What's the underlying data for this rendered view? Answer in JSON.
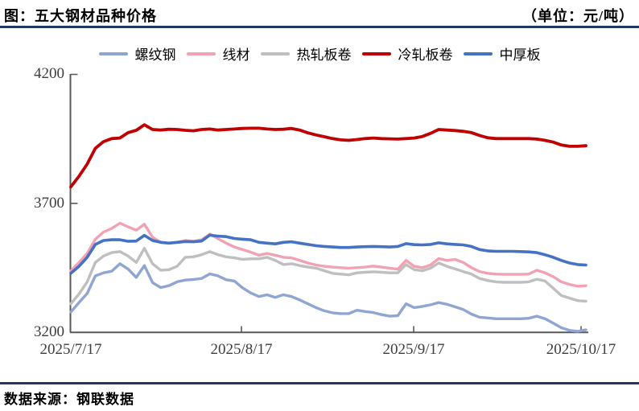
{
  "header": {
    "title": "图：五大钢材品种价格",
    "unit": "（单位：元/吨）"
  },
  "footer": {
    "source": "数据来源：钢联数据"
  },
  "colors": {
    "rule": "#1f3864",
    "axis": "#595959",
    "tick_label": "#3d3d3d"
  },
  "chart_data": {
    "type": "line",
    "title": "五大钢材品种价格",
    "value_unit": "元/吨",
    "grid": false,
    "legend_position": "top",
    "ylim": [
      3200,
      4200
    ],
    "y_ticks": [
      "4200",
      "3700",
      "3200"
    ],
    "x_tick_labels": [
      "2025/7/17",
      "2025/8/17",
      "2025/9/17",
      "2025/10/17"
    ],
    "series": [
      {
        "name": "螺纹钢",
        "color": "#8fa5d2",
        "values": [
          3278,
          3315,
          3350,
          3418,
          3430,
          3436,
          3465,
          3445,
          3412,
          3458,
          3392,
          3373,
          3380,
          3395,
          3402,
          3404,
          3408,
          3426,
          3418,
          3403,
          3398,
          3372,
          3352,
          3338,
          3345,
          3335,
          3345,
          3338,
          3325,
          3310,
          3295,
          3283,
          3275,
          3272,
          3272,
          3285,
          3280,
          3276,
          3268,
          3262,
          3264,
          3310,
          3295,
          3300,
          3306,
          3315,
          3308,
          3298,
          3288,
          3270,
          3258,
          3255,
          3252,
          3252,
          3252,
          3252,
          3254,
          3262,
          3252,
          3235,
          3217,
          3207,
          3203,
          3209
        ]
      },
      {
        "name": "线材",
        "color": "#f2a2b2",
        "values": [
          3437,
          3470,
          3505,
          3560,
          3588,
          3602,
          3622,
          3608,
          3595,
          3618,
          3568,
          3548,
          3545,
          3548,
          3555,
          3552,
          3558,
          3580,
          3562,
          3545,
          3530,
          3520,
          3510,
          3498,
          3505,
          3498,
          3490,
          3488,
          3478,
          3468,
          3460,
          3455,
          3452,
          3450,
          3448,
          3450,
          3452,
          3456,
          3452,
          3448,
          3444,
          3478,
          3455,
          3450,
          3460,
          3485,
          3478,
          3482,
          3470,
          3450,
          3435,
          3428,
          3425,
          3424,
          3424,
          3424,
          3425,
          3440,
          3430,
          3415,
          3395,
          3385,
          3378,
          3380
        ]
      },
      {
        "name": "热轧板卷",
        "color": "#bfbfbf",
        "values": [
          3310,
          3348,
          3395,
          3470,
          3495,
          3508,
          3512,
          3495,
          3470,
          3525,
          3465,
          3440,
          3442,
          3455,
          3490,
          3492,
          3500,
          3512,
          3500,
          3492,
          3488,
          3482,
          3484,
          3484,
          3490,
          3478,
          3462,
          3465,
          3458,
          3452,
          3448,
          3438,
          3428,
          3425,
          3422,
          3430,
          3432,
          3434,
          3432,
          3430,
          3430,
          3462,
          3442,
          3438,
          3448,
          3468,
          3455,
          3445,
          3435,
          3425,
          3408,
          3400,
          3395,
          3393,
          3393,
          3393,
          3395,
          3405,
          3398,
          3370,
          3342,
          3332,
          3322,
          3320
        ]
      },
      {
        "name": "冷轧板卷",
        "color": "#c00000",
        "values": [
          3763,
          3804,
          3851,
          3912,
          3938,
          3950,
          3952,
          3973,
          3982,
          4003,
          3985,
          3983,
          3986,
          3985,
          3982,
          3980,
          3985,
          3987,
          3983,
          3985,
          3987,
          3989,
          3990,
          3990,
          3987,
          3985,
          3986,
          3989,
          3983,
          3972,
          3964,
          3957,
          3950,
          3945,
          3943,
          3946,
          3950,
          3952,
          3950,
          3949,
          3948,
          3950,
          3952,
          3958,
          3970,
          3985,
          3983,
          3981,
          3978,
          3973,
          3962,
          3953,
          3950,
          3950,
          3950,
          3950,
          3950,
          3948,
          3943,
          3936,
          3925,
          3920,
          3920,
          3922
        ]
      },
      {
        "name": "中厚板",
        "color": "#4472c4",
        "values": [
          3428,
          3455,
          3490,
          3540,
          3555,
          3558,
          3558,
          3552,
          3553,
          3575,
          3555,
          3548,
          3545,
          3548,
          3551,
          3550,
          3553,
          3576,
          3572,
          3570,
          3563,
          3560,
          3558,
          3548,
          3545,
          3542,
          3548,
          3550,
          3545,
          3540,
          3535,
          3532,
          3530,
          3528,
          3528,
          3530,
          3531,
          3532,
          3531,
          3530,
          3532,
          3543,
          3539,
          3538,
          3540,
          3546,
          3542,
          3540,
          3538,
          3532,
          3520,
          3515,
          3513,
          3513,
          3513,
          3512,
          3511,
          3508,
          3500,
          3490,
          3478,
          3468,
          3462,
          3460
        ]
      }
    ]
  }
}
